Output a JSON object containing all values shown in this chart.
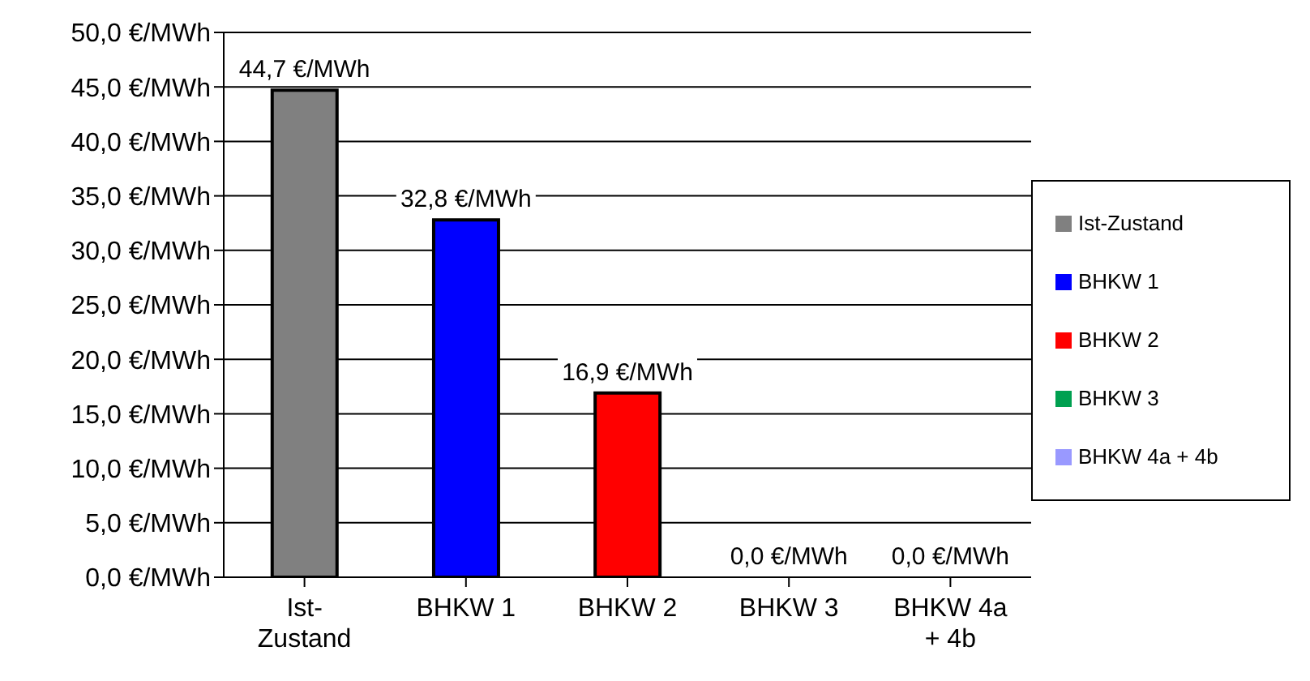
{
  "chart_data": {
    "type": "bar",
    "categories": [
      "Ist-Zustand",
      "BHKW 1",
      "BHKW 2",
      "BHKW 3",
      "BHKW 4a + 4b"
    ],
    "stacked": true,
    "series": [
      {
        "name": "Ist-Zustand",
        "color": "#808080",
        "values": [
          44.7,
          null,
          null,
          null,
          null
        ],
        "value_labels": [
          "44,7 €/MWh",
          null,
          null,
          null,
          null
        ]
      },
      {
        "name": "BHKW 1",
        "color": "#0000ff",
        "values": [
          null,
          32.8,
          null,
          null,
          null
        ],
        "value_labels": [
          null,
          "32,8 €/MWh",
          null,
          null,
          null
        ]
      },
      {
        "name": "BHKW 2",
        "color": "#ff0000",
        "values": [
          null,
          null,
          16.9,
          null,
          null
        ],
        "value_labels": [
          null,
          null,
          "16,9 €/MWh",
          null,
          null
        ]
      },
      {
        "name": "BHKW 3",
        "color": "#00a050",
        "values": [
          null,
          null,
          null,
          0,
          null
        ],
        "value_labels": [
          null,
          null,
          null,
          "0,0 €/MWh",
          null
        ]
      },
      {
        "name": "BHKW 4a + 4b",
        "color": "#9999ff",
        "values": [
          null,
          null,
          null,
          null,
          0
        ],
        "value_labels": [
          null,
          null,
          null,
          null,
          "0,0 €/MWh"
        ]
      }
    ],
    "ylim": [
      0,
      50
    ],
    "yticks": [
      {
        "value": 0,
        "label": "0,0 €/MWh"
      },
      {
        "value": 5,
        "label": "5,0 €/MWh"
      },
      {
        "value": 10,
        "label": "10,0 €/MWh"
      },
      {
        "value": 15,
        "label": "15,0 €/MWh"
      },
      {
        "value": 20,
        "label": "20,0 €/MWh"
      },
      {
        "value": 25,
        "label": "25,0 €/MWh"
      },
      {
        "value": 30,
        "label": "30,0 €/MWh"
      },
      {
        "value": 35,
        "label": "35,0 €/MWh"
      },
      {
        "value": 40,
        "label": "40,0 €/MWh"
      },
      {
        "value": 45,
        "label": "45,0 €/MWh"
      },
      {
        "value": 50,
        "label": "50,0 €/MWh"
      }
    ],
    "grid": "y",
    "legend": "right"
  }
}
